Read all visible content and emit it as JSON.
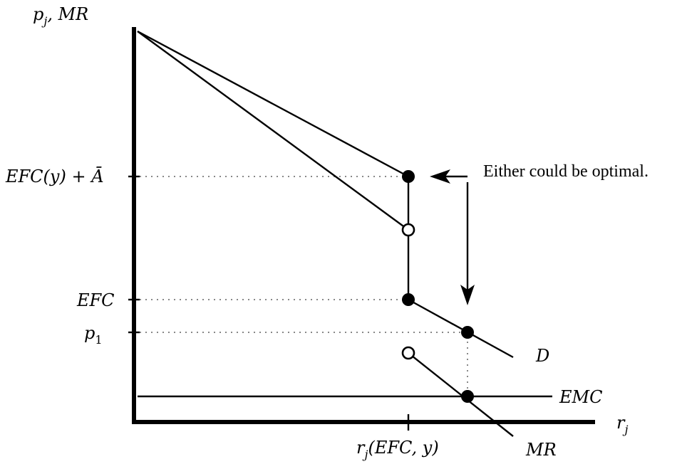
{
  "axes": {
    "y_label_main": "p",
    "y_label_sub": "j",
    "y_label_rest": ", MR",
    "x_label_main": "r",
    "x_label_sub": "j"
  },
  "y_ticks": {
    "efc_plus_a": "EFC(y) + Ā",
    "efc": "EFC",
    "p1_main": "p",
    "p1_sub": "1"
  },
  "x_ticks": {
    "rj_main": "r",
    "rj_sub": "j",
    "rj_rest": "(EFC, y)"
  },
  "curves": {
    "demand": "D",
    "marginal_revenue": "MR",
    "emc": "EMC"
  },
  "annotation": "Either could be optimal."
}
